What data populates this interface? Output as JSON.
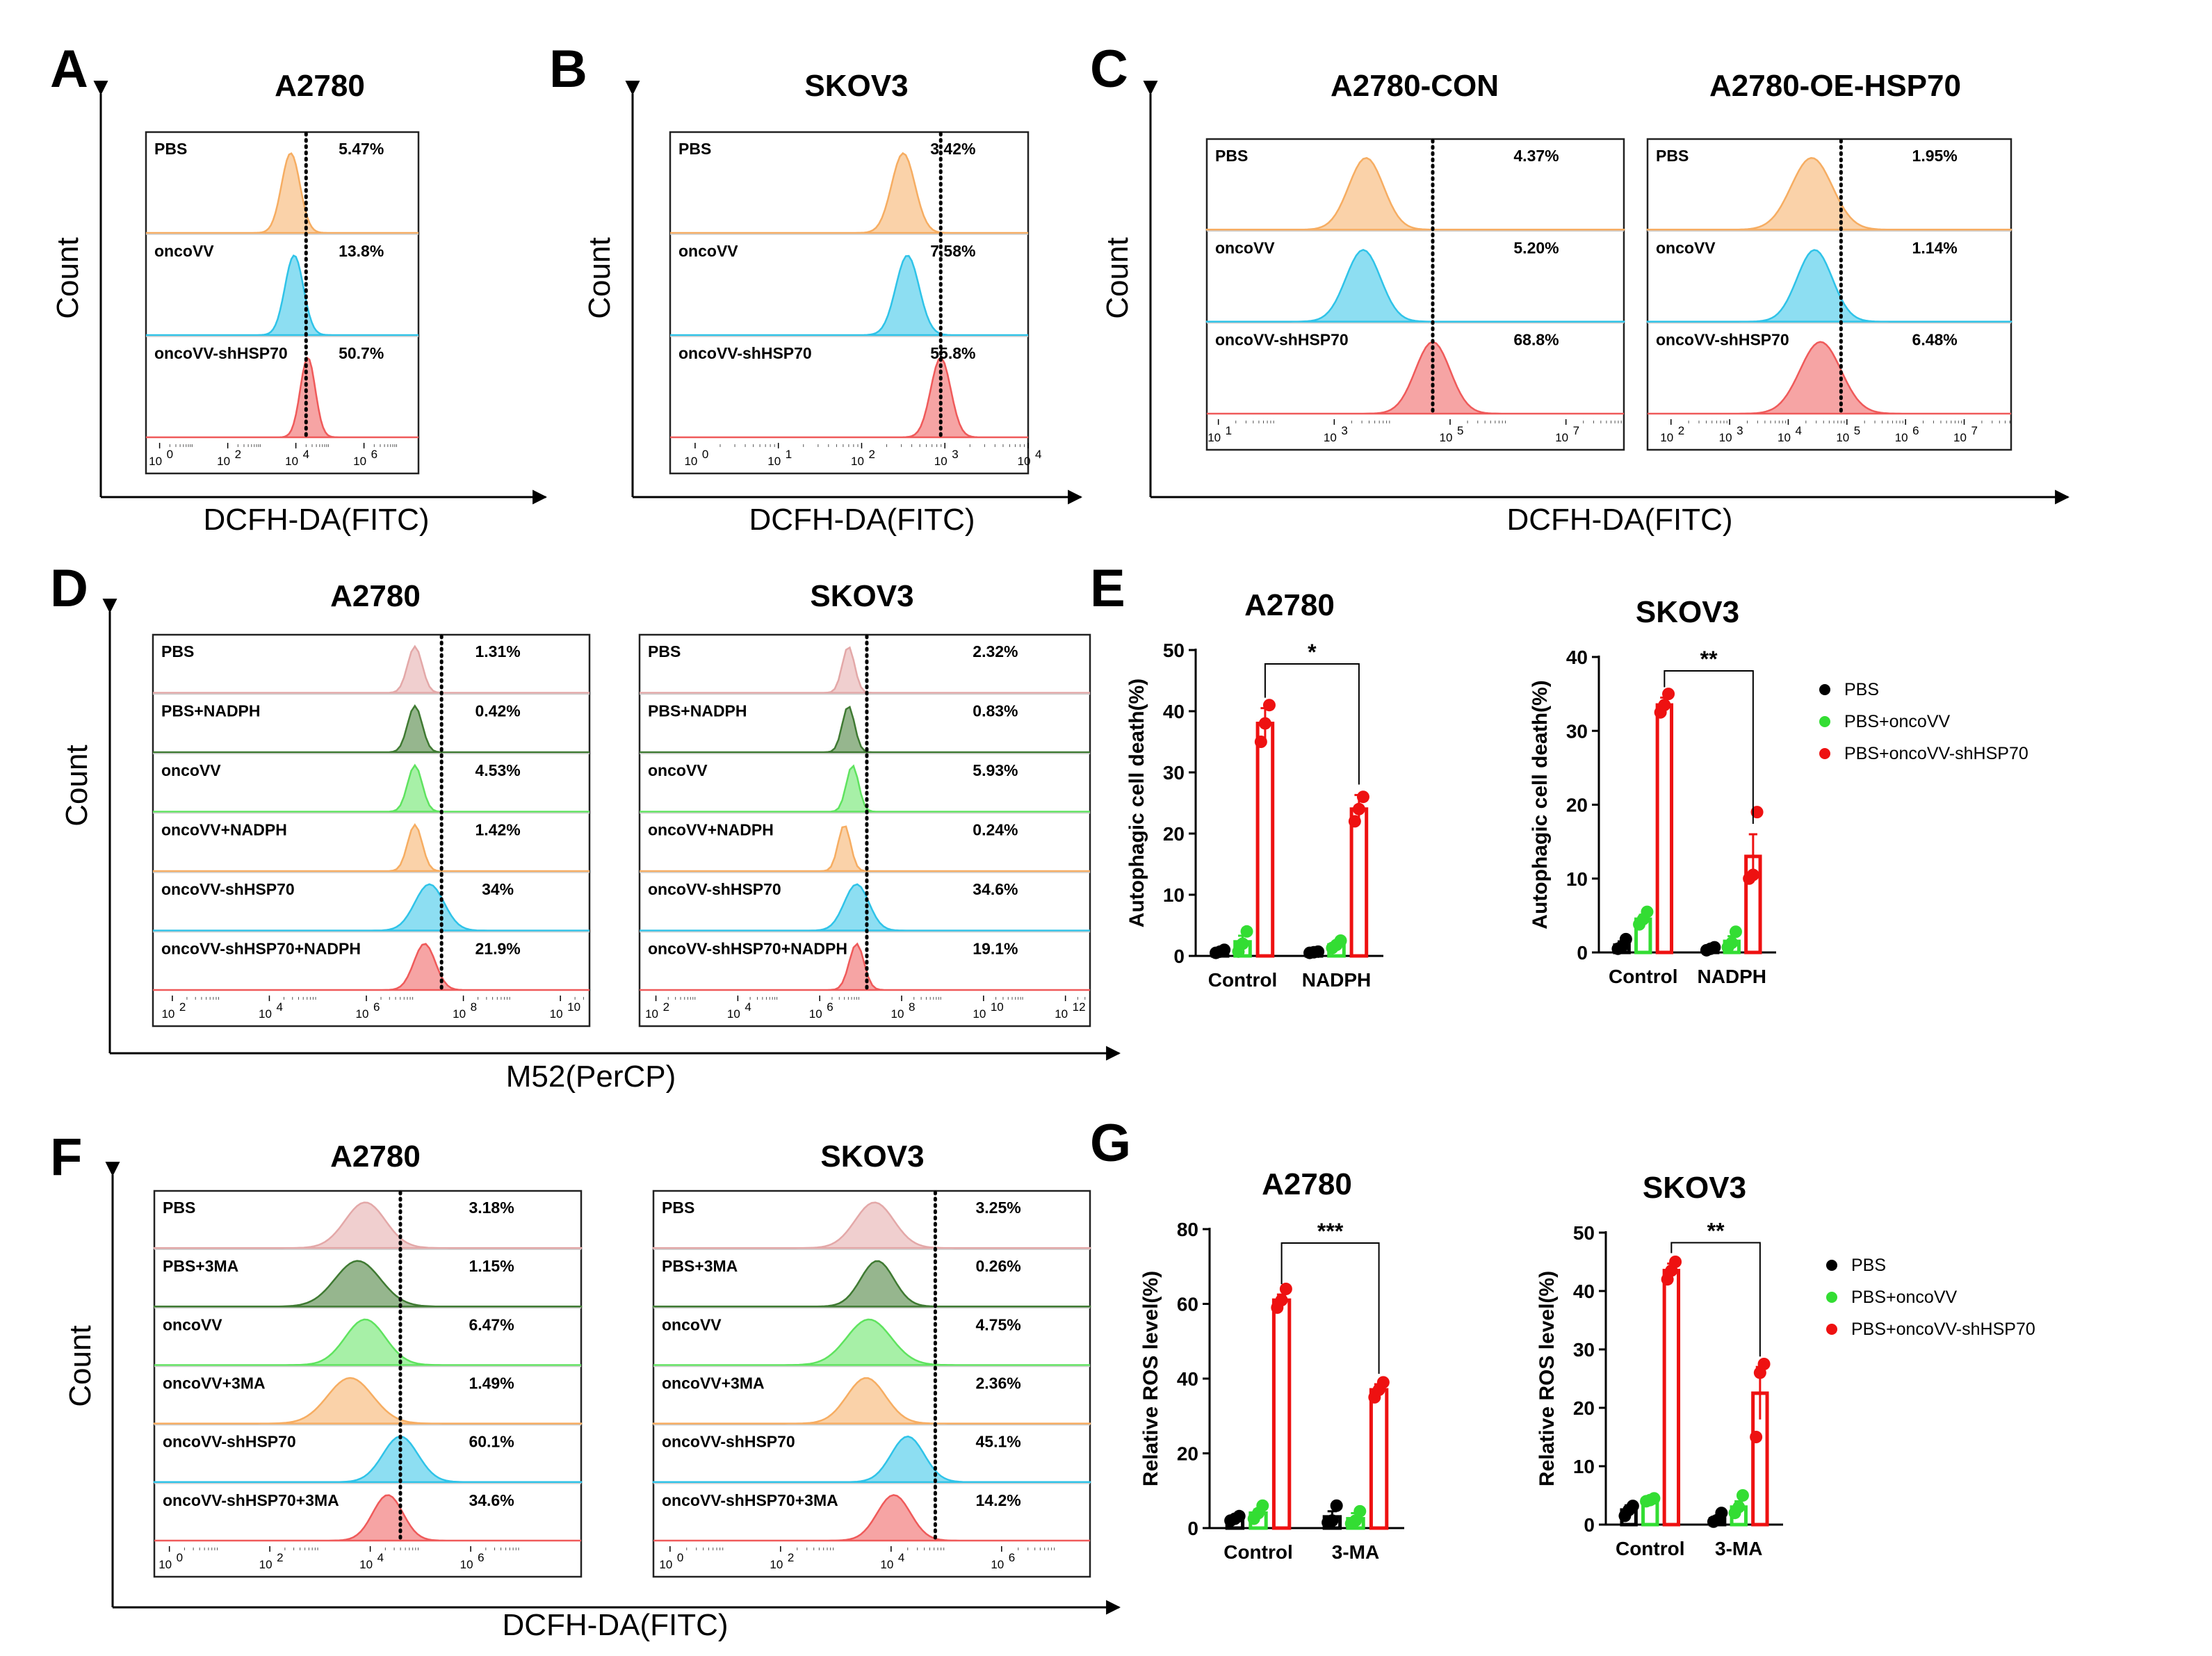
{
  "panels": {
    "A": {
      "letter": "A",
      "title": "A2780",
      "xlabel": "DCFH-DA(FITC)",
      "ylabel": "Count"
    },
    "B": {
      "letter": "B",
      "title": "SKOV3",
      "xlabel": "DCFH-DA(FITC)",
      "ylabel": "Count"
    },
    "C": {
      "letter": "C",
      "title_left": "A2780-CON",
      "title_right": "A2780-OE-HSP70",
      "xlabel": "DCFH-DA(FITC)",
      "ylabel": "Count"
    },
    "D": {
      "letter": "D",
      "title_left": "A2780",
      "title_right": "SKOV3",
      "xlabel": "M52(PerCP)",
      "ylabel": "Count"
    },
    "E": {
      "letter": "E"
    },
    "F": {
      "letter": "F",
      "title_left": "A2780",
      "title_right": "SKOV3",
      "xlabel": "DCFH-DA(FITC)",
      "ylabel": "Count"
    },
    "G": {
      "letter": "G"
    }
  },
  "colors": {
    "orange": "#f6ad62",
    "cyan": "#2fc3e8",
    "red": "#ef5a5a",
    "pink": "#e3a8a8",
    "darkgreen": "#3f7a32",
    "lightgreen": "#5fe35f",
    "bar_black": "#000000",
    "bar_green": "#33dd33",
    "bar_red": "#ee1111"
  },
  "chart_data": [
    {
      "type": "histogram",
      "panel": "A",
      "title": "A2780",
      "xlabel": "DCFH-DA(FITC)",
      "ylabel": "Count",
      "xticks": [
        "10",
        "10",
        "10",
        "10"
      ],
      "xtick_exp": [
        "0",
        "2",
        "4",
        "6"
      ],
      "xrange_log": [
        -0.4,
        7.6
      ],
      "gate_log": 4.3,
      "rows": [
        {
          "label": "PBS",
          "pct": "5.47%",
          "color": "orange",
          "peak_log": 3.85,
          "width": 0.27
        },
        {
          "label": "oncoVV",
          "pct": "13.8%",
          "color": "cyan",
          "peak_log": 3.95,
          "width": 0.27
        },
        {
          "label": "oncoVV-shHSP70",
          "pct": "50.7%",
          "color": "red",
          "peak_log": 4.35,
          "width": 0.22
        }
      ]
    },
    {
      "type": "histogram",
      "panel": "B",
      "title": "SKOV3",
      "xlabel": "DCFH-DA(FITC)",
      "ylabel": "Count",
      "xticks": [
        "10",
        "10",
        "10",
        "10",
        "10"
      ],
      "xtick_exp": [
        "0",
        "1",
        "2",
        "3",
        "4"
      ],
      "xrange_log": [
        -0.3,
        4.0
      ],
      "gate_log": 2.95,
      "rows": [
        {
          "label": "PBS",
          "pct": "3.42%",
          "color": "orange",
          "peak_log": 2.5,
          "width": 0.14
        },
        {
          "label": "oncoVV",
          "pct": "7.58%",
          "color": "cyan",
          "peak_log": 2.55,
          "width": 0.14
        },
        {
          "label": "oncoVV-shHSP70",
          "pct": "55.8%",
          "color": "red",
          "peak_log": 2.95,
          "width": 0.12
        }
      ]
    },
    {
      "type": "histogram",
      "panel": "C",
      "title": "A2780-CON",
      "xlabel": "DCFH-DA(FITC)",
      "ylabel": "Count",
      "xticks": [
        "10",
        "10",
        "10",
        "10"
      ],
      "xtick_exp": [
        "1",
        "3",
        "5",
        "7"
      ],
      "xrange_log": [
        0.8,
        8.0
      ],
      "gate_log": 4.7,
      "rows": [
        {
          "label": "PBS",
          "pct": "4.37%",
          "color": "orange",
          "peak_log": 3.55,
          "width": 0.3
        },
        {
          "label": "oncoVV",
          "pct": "5.20%",
          "color": "cyan",
          "peak_log": 3.5,
          "width": 0.3
        },
        {
          "label": "oncoVV-shHSP70",
          "pct": "68.8%",
          "color": "red",
          "peak_log": 4.7,
          "width": 0.3
        }
      ]
    },
    {
      "type": "histogram",
      "panel": "C",
      "title": "A2780-OE-HSP70",
      "xlabel": "DCFH-DA(FITC)",
      "ylabel": "Count",
      "xticks": [
        "10",
        "10",
        "10",
        "10",
        "10",
        "10"
      ],
      "xtick_exp": [
        "2",
        "3",
        "4",
        "5",
        "6",
        "7"
      ],
      "xrange_log": [
        1.6,
        7.8
      ],
      "gate_log": 4.9,
      "rows": [
        {
          "label": "PBS",
          "pct": "1.95%",
          "color": "orange",
          "peak_log": 4.4,
          "width": 0.35
        },
        {
          "label": "oncoVV",
          "pct": "1.14%",
          "color": "cyan",
          "peak_log": 4.45,
          "width": 0.3
        },
        {
          "label": "oncoVV-shHSP70",
          "pct": "6.48%",
          "color": "red",
          "peak_log": 4.55,
          "width": 0.35
        }
      ]
    },
    {
      "type": "histogram",
      "panel": "D",
      "title": "A2780",
      "xlabel": "M52(PerCP)",
      "ylabel": "Count",
      "xticks": [
        "10",
        "10",
        "10",
        "10",
        "10"
      ],
      "xtick_exp": [
        "2",
        "4",
        "6",
        "8",
        "10"
      ],
      "xrange_log": [
        1.6,
        10.6
      ],
      "gate_log": 7.55,
      "rows": [
        {
          "label": "PBS",
          "pct": "1.31%",
          "color": "pink",
          "peak_log": 7.0,
          "width": 0.15
        },
        {
          "label": "PBS+NADPH",
          "pct": "0.42%",
          "color": "darkgreen",
          "peak_log": 7.0,
          "width": 0.15
        },
        {
          "label": "oncoVV",
          "pct": "4.53%",
          "color": "lightgreen",
          "peak_log": 7.0,
          "width": 0.15
        },
        {
          "label": "oncoVV+NADPH",
          "pct": "1.42%",
          "color": "orange",
          "peak_log": 7.0,
          "width": 0.15
        },
        {
          "label": "oncoVV-shHSP70",
          "pct": "34%",
          "color": "cyan",
          "peak_log": 7.3,
          "width": 0.3
        },
        {
          "label": "oncoVV-shHSP70+NADPH",
          "pct": "21.9%",
          "color": "red",
          "peak_log": 7.2,
          "width": 0.22
        }
      ]
    },
    {
      "type": "histogram",
      "panel": "D",
      "title": "SKOV3",
      "xlabel": "M52(PerCP)",
      "ylabel": "Count",
      "xticks": [
        "10",
        "10",
        "10",
        "10",
        "10",
        "10"
      ],
      "xtick_exp": [
        "2",
        "4",
        "6",
        "8",
        "10",
        "12"
      ],
      "xrange_log": [
        1.6,
        12.6
      ],
      "gate_log": 7.15,
      "rows": [
        {
          "label": "PBS",
          "pct": "2.32%",
          "color": "pink",
          "peak_log": 6.7,
          "width": 0.15
        },
        {
          "label": "PBS+NADPH",
          "pct": "0.83%",
          "color": "darkgreen",
          "peak_log": 6.7,
          "width": 0.15
        },
        {
          "label": "oncoVV",
          "pct": "5.93%",
          "color": "lightgreen",
          "peak_log": 6.8,
          "width": 0.15
        },
        {
          "label": "oncoVV+NADPH",
          "pct": "0.24%",
          "color": "orange",
          "peak_log": 6.6,
          "width": 0.15
        },
        {
          "label": "oncoVV-shHSP70",
          "pct": "34.6%",
          "color": "cyan",
          "peak_log": 6.9,
          "width": 0.3
        },
        {
          "label": "oncoVV-shHSP70+NADPH",
          "pct": "19.1%",
          "color": "red",
          "peak_log": 6.9,
          "width": 0.18
        }
      ]
    },
    {
      "type": "histogram",
      "panel": "F",
      "title": "A2780",
      "xlabel": "DCFH-DA(FITC)",
      "ylabel": "Count",
      "xticks": [
        "10",
        "10",
        "10",
        "10"
      ],
      "xtick_exp": [
        "0",
        "2",
        "4",
        "6"
      ],
      "xrange_log": [
        -0.3,
        8.2
      ],
      "gate_log": 4.6,
      "rows": [
        {
          "label": "PBS",
          "pct": "3.18%",
          "color": "pink",
          "peak_log": 3.9,
          "width": 0.4
        },
        {
          "label": "PBS+3MA",
          "pct": "1.15%",
          "color": "darkgreen",
          "peak_log": 3.75,
          "width": 0.45
        },
        {
          "label": "oncoVV",
          "pct": "6.47%",
          "color": "lightgreen",
          "peak_log": 3.9,
          "width": 0.4
        },
        {
          "label": "oncoVV+3MA",
          "pct": "1.49%",
          "color": "orange",
          "peak_log": 3.6,
          "width": 0.45
        },
        {
          "label": "oncoVV-shHSP70",
          "pct": "60.1%",
          "color": "cyan",
          "peak_log": 4.6,
          "width": 0.35
        },
        {
          "label": "oncoVV-shHSP70+3MA",
          "pct": "34.6%",
          "color": "red",
          "peak_log": 4.35,
          "width": 0.3
        }
      ]
    },
    {
      "type": "histogram",
      "panel": "F",
      "title": "SKOV3",
      "xlabel": "DCFH-DA(FITC)",
      "ylabel": "Count",
      "xticks": [
        "10",
        "10",
        "10",
        "10"
      ],
      "xtick_exp": [
        "0",
        "2",
        "4",
        "6"
      ],
      "xrange_log": [
        -0.3,
        7.6
      ],
      "gate_log": 4.8,
      "rows": [
        {
          "label": "PBS",
          "pct": "3.25%",
          "color": "pink",
          "peak_log": 3.7,
          "width": 0.35
        },
        {
          "label": "PBS+3MA",
          "pct": "0.26%",
          "color": "darkgreen",
          "peak_log": 3.75,
          "width": 0.3
        },
        {
          "label": "oncoVV",
          "pct": "4.75%",
          "color": "lightgreen",
          "peak_log": 3.6,
          "width": 0.4
        },
        {
          "label": "oncoVV+3MA",
          "pct": "2.36%",
          "color": "orange",
          "peak_log": 3.55,
          "width": 0.35
        },
        {
          "label": "oncoVV-shHSP70",
          "pct": "45.1%",
          "color": "cyan",
          "peak_log": 4.3,
          "width": 0.3
        },
        {
          "label": "oncoVV-shHSP70+3MA",
          "pct": "14.2%",
          "color": "red",
          "peak_log": 4.05,
          "width": 0.3
        }
      ]
    },
    {
      "type": "bar",
      "panel": "E",
      "title": "A2780",
      "ylabel": "Autophagic cell death(%)",
      "ylim": [
        0,
        50
      ],
      "yticks": [
        0,
        10,
        20,
        30,
        40,
        50
      ],
      "categories": [
        "Control",
        "NADPH"
      ],
      "significance": "*",
      "series": [
        {
          "name": "PBS",
          "color": "bar_black",
          "values": [
            0.7,
            0.6
          ],
          "sem": [
            0.2,
            0.1
          ],
          "points": [
            [
              0.5,
              0.7,
              1.0
            ],
            [
              0.5,
              0.6,
              0.7
            ]
          ]
        },
        {
          "name": "PBS+oncoVV",
          "color": "bar_green",
          "values": [
            2.3,
            1.8
          ],
          "sem": [
            1.0,
            0.5
          ],
          "points": [
            [
              0.7,
              2.0,
              4.0
            ],
            [
              1.3,
              1.8,
              2.5
            ]
          ]
        },
        {
          "name": "PBS+oncoVV-shHSP70",
          "color": "bar_red",
          "values": [
            38,
            24
          ],
          "sem": [
            2.5,
            2.3
          ],
          "points": [
            [
              35,
              38,
              41
            ],
            [
              22,
              24,
              26
            ]
          ]
        }
      ]
    },
    {
      "type": "bar",
      "panel": "E",
      "title": "SKOV3",
      "ylabel": "Autophagic cell death(%)",
      "ylim": [
        0,
        40
      ],
      "yticks": [
        0,
        10,
        20,
        30,
        40
      ],
      "categories": [
        "Control",
        "NADPH"
      ],
      "significance": "**",
      "legend": [
        "PBS",
        "PBS+oncoVV",
        "PBS+oncoVV-shHSP70"
      ],
      "series": [
        {
          "name": "PBS",
          "color": "bar_black",
          "values": [
            1.0,
            0.5
          ],
          "sem": [
            0.5,
            0.2
          ],
          "points": [
            [
              0.5,
              0.8,
              1.8
            ],
            [
              0.3,
              0.5,
              0.7
            ]
          ]
        },
        {
          "name": "PBS+oncoVV",
          "color": "bar_green",
          "values": [
            4.5,
            1.5
          ],
          "sem": [
            0.6,
            0.7
          ],
          "points": [
            [
              3.8,
              4.5,
              5.5
            ],
            [
              0.7,
              1.3,
              2.8
            ]
          ]
        },
        {
          "name": "PBS+oncoVV-shHSP70",
          "color": "bar_red",
          "values": [
            33.5,
            13
          ],
          "sem": [
            1.0,
            3.0
          ],
          "points": [
            [
              32.5,
              33.5,
              35
            ],
            [
              10,
              10.5,
              19
            ]
          ]
        }
      ]
    },
    {
      "type": "bar",
      "panel": "G",
      "title": "A2780",
      "ylabel": "Relative ROS level(%)",
      "ylim": [
        0,
        80
      ],
      "yticks": [
        0,
        20,
        40,
        60,
        80
      ],
      "categories": [
        "Control",
        "3-MA"
      ],
      "significance": "***",
      "series": [
        {
          "name": "PBS",
          "color": "bar_black",
          "values": [
            2.5,
            3.0
          ],
          "sem": [
            0.5,
            1.5
          ],
          "points": [
            [
              2,
              2.5,
              3.2
            ],
            [
              1.5,
              2.0,
              6.0
            ]
          ]
        },
        {
          "name": "PBS+oncoVV",
          "color": "bar_green",
          "values": [
            4.0,
            2.5
          ],
          "sem": [
            1.0,
            1.5
          ],
          "points": [
            [
              2.5,
              4.0,
              6.0
            ],
            [
              1.2,
              2.0,
              4.5
            ]
          ]
        },
        {
          "name": "PBS+oncoVV-shHSP70",
          "color": "bar_red",
          "values": [
            61,
            37
          ],
          "sem": [
            1.5,
            1.5
          ],
          "points": [
            [
              59,
              61,
              64
            ],
            [
              35,
              37,
              39
            ]
          ]
        }
      ]
    },
    {
      "type": "bar",
      "panel": "G",
      "title": "SKOV3",
      "ylabel": "Relative ROS level(%)",
      "ylim": [
        0,
        50
      ],
      "yticks": [
        0,
        10,
        20,
        30,
        40,
        50
      ],
      "categories": [
        "Control",
        "3-MA"
      ],
      "significance": "**",
      "legend": [
        "PBS",
        "PBS+oncoVV",
        "PBS+oncoVV-shHSP70"
      ],
      "series": [
        {
          "name": "PBS",
          "color": "bar_black",
          "values": [
            2.5,
            1.0
          ],
          "sem": [
            0.8,
            0.5
          ],
          "points": [
            [
              1.5,
              2.5,
              3.2
            ],
            [
              0.5,
              0.8,
              2.0
            ]
          ]
        },
        {
          "name": "PBS+oncoVV",
          "color": "bar_green",
          "values": [
            4.2,
            3.0
          ],
          "sem": [
            0.3,
            1.0
          ],
          "points": [
            [
              4.0,
              4.2,
              4.5
            ],
            [
              2.0,
              3.0,
              5.0
            ]
          ]
        },
        {
          "name": "PBS+oncoVV-shHSP70",
          "color": "bar_red",
          "values": [
            43.5,
            22.5
          ],
          "sem": [
            1.2,
            4.5
          ],
          "points": [
            [
              42,
              43.5,
              45
            ],
            [
              15,
              26,
              27.5
            ]
          ]
        }
      ]
    }
  ]
}
